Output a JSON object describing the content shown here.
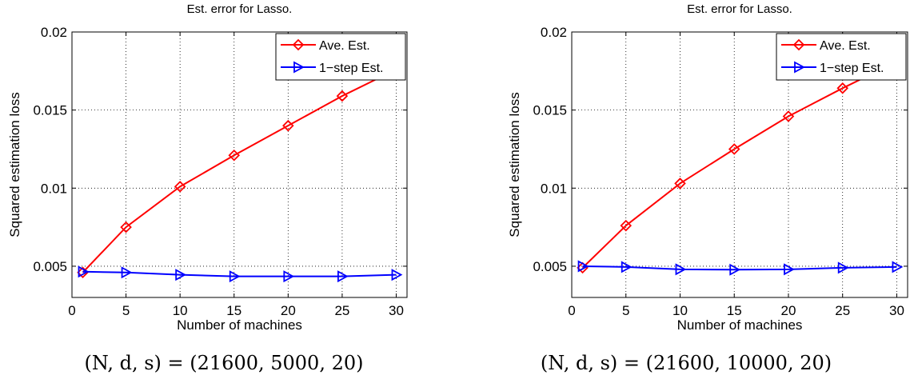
{
  "chart_data": [
    {
      "type": "line",
      "title": "Est. error for Lasso.",
      "xlabel": "Number of machines",
      "ylabel": "Squared estimation loss",
      "x": [
        1,
        5,
        10,
        15,
        20,
        25,
        30
      ],
      "xlim": [
        0,
        31
      ],
      "ylim": [
        0.003,
        0.02
      ],
      "xticks": [
        "0",
        "5",
        "10",
        "15",
        "20",
        "25",
        "30"
      ],
      "yticks": [
        "0.005",
        "0.01",
        "0.015",
        "0.02"
      ],
      "grid": true,
      "legend_position": "top-right",
      "caption": "(N, d, s) = (21600, 5000, 20)",
      "series": [
        {
          "name": "Ave. Est.",
          "color": "#ff0000",
          "marker": "diamond",
          "values": [
            0.0046,
            0.0075,
            0.0101,
            0.0121,
            0.014,
            0.0159,
            0.0176
          ]
        },
        {
          "name": "1−step Est.",
          "color": "#0000ff",
          "marker": "triangle-right",
          "values": [
            0.00465,
            0.0046,
            0.00445,
            0.00435,
            0.00435,
            0.00435,
            0.00445
          ]
        }
      ]
    },
    {
      "type": "line",
      "title": "Est. error for Lasso.",
      "xlabel": "Number of machines",
      "ylabel": "Squared estimation loss",
      "x": [
        1,
        5,
        10,
        15,
        20,
        25,
        30
      ],
      "xlim": [
        0,
        31
      ],
      "ylim": [
        0.003,
        0.02
      ],
      "xticks": [
        "0",
        "5",
        "10",
        "15",
        "20",
        "25",
        "30"
      ],
      "yticks": [
        "0.005",
        "0.01",
        "0.015",
        "0.02"
      ],
      "grid": true,
      "legend_position": "top-right",
      "caption": "(N, d, s) = (21600, 10000, 20)",
      "series": [
        {
          "name": "Ave. Est.",
          "color": "#ff0000",
          "marker": "diamond",
          "values": [
            0.0049,
            0.0076,
            0.0103,
            0.0125,
            0.0146,
            0.0164,
            0.0181
          ]
        },
        {
          "name": "1−step Est.",
          "color": "#0000ff",
          "marker": "triangle-right",
          "values": [
            0.005,
            0.00495,
            0.0048,
            0.00478,
            0.0048,
            0.0049,
            0.00495
          ]
        }
      ]
    }
  ]
}
